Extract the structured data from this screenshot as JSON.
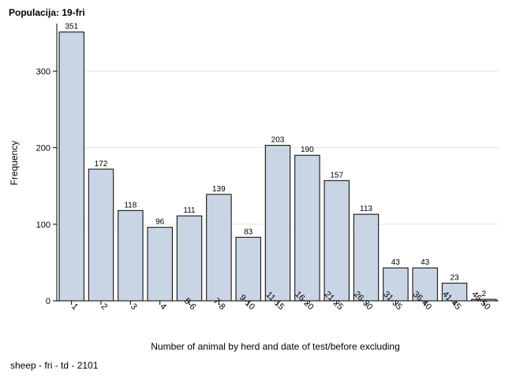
{
  "title": "Populacija: 19-fri",
  "footnote": "sheep - fri - td - 2101",
  "chart_data": {
    "type": "bar",
    "categories": [
      "1",
      "2",
      "3",
      "4",
      "5-6",
      "7-8",
      "9-10",
      "11-15",
      "16-20",
      "21-25",
      "26-30",
      "31-35",
      "36-40",
      "41-45",
      "46-50"
    ],
    "values": [
      351,
      172,
      118,
      96,
      111,
      139,
      83,
      203,
      190,
      157,
      113,
      43,
      43,
      23,
      2
    ],
    "data_labels": [
      "351",
      "172",
      "118",
      "96",
      "111",
      "139",
      "83",
      "203",
      "190",
      "157",
      "113",
      "43",
      "43",
      "23",
      "2"
    ],
    "xlabel": "Number of animal by herd and date of test/before excluding",
    "ylabel": "Frequency",
    "ylim": [
      0,
      362
    ],
    "yticks": [
      0,
      100,
      200,
      300
    ],
    "grid": true,
    "bar_color": "#c9d5e5",
    "bar_edge_color": "#000000"
  }
}
